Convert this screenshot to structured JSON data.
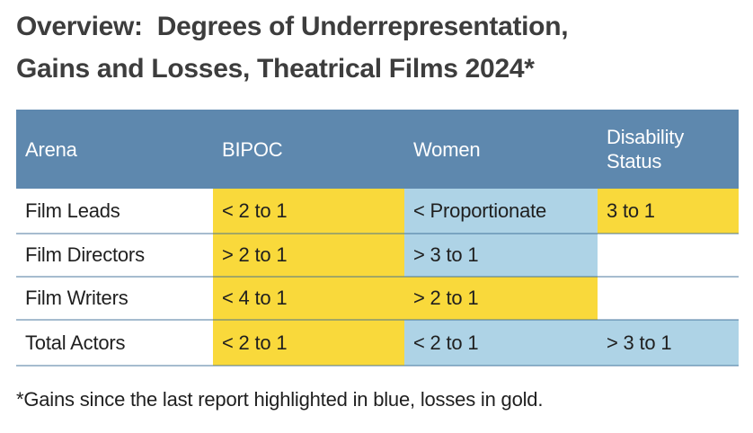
{
  "title": {
    "lines": [
      "Overview:  Degrees of Underrepresentation,",
      "Gains and Losses, Theatrical Films 2024*"
    ]
  },
  "footnote": "*Gains since the last report highlighted in blue, losses in gold.",
  "colors": {
    "header_bg": "#5e88ae",
    "header_text": "#ffffff",
    "gold_highlight": "#f9d93b",
    "blue_highlight": "#aed3e6",
    "row_separator": "#a7bdcf",
    "title_text": "#3d3d3d",
    "body_text": "#1f1f1f"
  },
  "table": {
    "columns": [
      {
        "label": "Arena"
      },
      {
        "label": "BIPOC"
      },
      {
        "label": "Women"
      },
      {
        "label": "Disability Status"
      }
    ],
    "rows": [
      {
        "arena": "Film Leads",
        "cells": [
          {
            "text": "< 2 to 1",
            "highlight": "gold"
          },
          {
            "text": "< Proportionate",
            "highlight": "blue"
          },
          {
            "text": "3 to 1",
            "highlight": "gold"
          }
        ]
      },
      {
        "arena": "Film Directors",
        "cells": [
          {
            "text": "> 2 to 1",
            "highlight": "gold"
          },
          {
            "text": "> 3 to 1",
            "highlight": "blue"
          },
          {
            "text": "",
            "highlight": "none"
          }
        ]
      },
      {
        "arena": "Film Writers",
        "cells": [
          {
            "text": "< 4 to 1",
            "highlight": "gold"
          },
          {
            "text": "> 2 to 1",
            "highlight": "gold"
          },
          {
            "text": "",
            "highlight": "none"
          }
        ]
      },
      {
        "arena": "Total Actors",
        "cells": [
          {
            "text": "< 2 to 1",
            "highlight": "gold"
          },
          {
            "text": "< 2 to 1",
            "highlight": "blue"
          },
          {
            "text": "> 3 to 1",
            "highlight": "blue"
          }
        ]
      }
    ]
  },
  "chart_data": {
    "type": "table",
    "title": "Overview: Degrees of Underrepresentation, Gains and Losses, Theatrical Films 2024*",
    "columns": [
      "Arena",
      "BIPOC",
      "Women",
      "Disability Status"
    ],
    "rows": [
      [
        "Film Leads",
        "< 2 to 1",
        "< Proportionate",
        "3 to 1"
      ],
      [
        "Film Directors",
        "> 2 to 1",
        "> 3 to 1",
        ""
      ],
      [
        "Film Writers",
        "< 4 to 1",
        "> 2 to 1",
        ""
      ],
      [
        "Total Actors",
        "< 2 to 1",
        "< 2 to 1",
        "> 3 to 1"
      ]
    ],
    "cell_highlights": [
      [
        "none",
        "gold",
        "blue",
        "gold"
      ],
      [
        "none",
        "gold",
        "blue",
        "none"
      ],
      [
        "none",
        "gold",
        "gold",
        "none"
      ],
      [
        "none",
        "gold",
        "blue",
        "blue"
      ]
    ],
    "legend": {
      "blue": "gains since the last report",
      "gold": "losses since the last report"
    },
    "footnote": "*Gains since the last report highlighted in blue, losses in gold."
  }
}
